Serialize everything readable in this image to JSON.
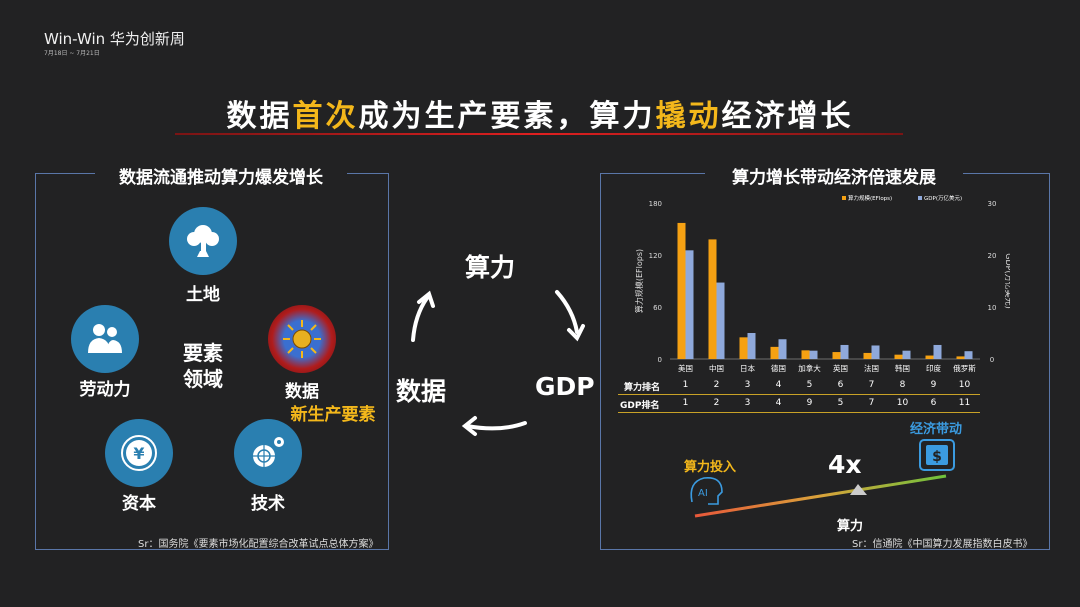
{
  "brand": {
    "title": "Win-Win 华为创新周",
    "date": "7月18日 ~ 7月21日"
  },
  "slide_title": {
    "part1": "数据",
    "part2": "首次",
    "part3": "成为生产要素，算力",
    "part4": "撬动",
    "part5": "经济增长"
  },
  "left_panel": {
    "title": "数据流通推动算力爆发增长",
    "center_label_line1": "要素",
    "center_label_line2": "领域",
    "items": [
      {
        "label": "土地",
        "icon": "tree-icon"
      },
      {
        "label": "劳动力",
        "icon": "people-icon"
      },
      {
        "label": "数据",
        "sublabel": "新生产要素",
        "icon": "globe-data-icon"
      },
      {
        "label": "资本",
        "icon": "yuan-coin-icon"
      },
      {
        "label": "技术",
        "icon": "gear-globe-icon"
      }
    ],
    "source": "Sr：国务院《要素市场化配置综合改革试点总体方案》"
  },
  "cycle": {
    "top": "算力",
    "right": "GDP",
    "left": "数据"
  },
  "right_panel": {
    "title": "算力增长带动经济倍速发展",
    "source": "Sr：信通院《中国算力发展指数白皮书》",
    "compute_rank_label": "算力排名",
    "gdp_rank_label": "GDP排名",
    "compute_ranks": [
      "1",
      "2",
      "3",
      "4",
      "5",
      "6",
      "7",
      "8",
      "9",
      "10"
    ],
    "gdp_ranks": [
      "1",
      "2",
      "3",
      "4",
      "9",
      "5",
      "7",
      "10",
      "6",
      "11"
    ],
    "investment_label": "算力投入",
    "economy_label": "经济带动",
    "multiplier": "4x",
    "fulcrum_label": "算力"
  },
  "colors": {
    "orange": "#f5a113",
    "blue": "#8fa9db",
    "gold": "#f4b81b",
    "accent_blue": "#3b9be0"
  },
  "chart_data": {
    "type": "bar",
    "categories": [
      "美国",
      "中国",
      "日本",
      "德国",
      "加拿大",
      "英国",
      "法国",
      "韩国",
      "印度",
      "俄罗斯"
    ],
    "series": [
      {
        "name": "算力规模(EFlops)",
        "axis": "left",
        "color": "#f5a113",
        "values": [
          157,
          138,
          25,
          14,
          10,
          8,
          7,
          5,
          4,
          3
        ]
      },
      {
        "name": "GDP(万亿美元)",
        "axis": "right",
        "color": "#8fa9db",
        "values": [
          20.9,
          14.7,
          5.0,
          3.8,
          1.6,
          2.7,
          2.6,
          1.6,
          2.7,
          1.5
        ]
      }
    ],
    "ylabel": "算力规模(EFlops)",
    "y2label": "GDP(万亿美元)",
    "ylim": [
      0,
      180
    ],
    "y2lim": [
      0,
      30
    ],
    "yticks": [
      "0",
      "60",
      "120",
      "180"
    ],
    "y2ticks": [
      "0",
      "10",
      "20",
      "30"
    ],
    "legend": "top-right",
    "grid": false
  }
}
